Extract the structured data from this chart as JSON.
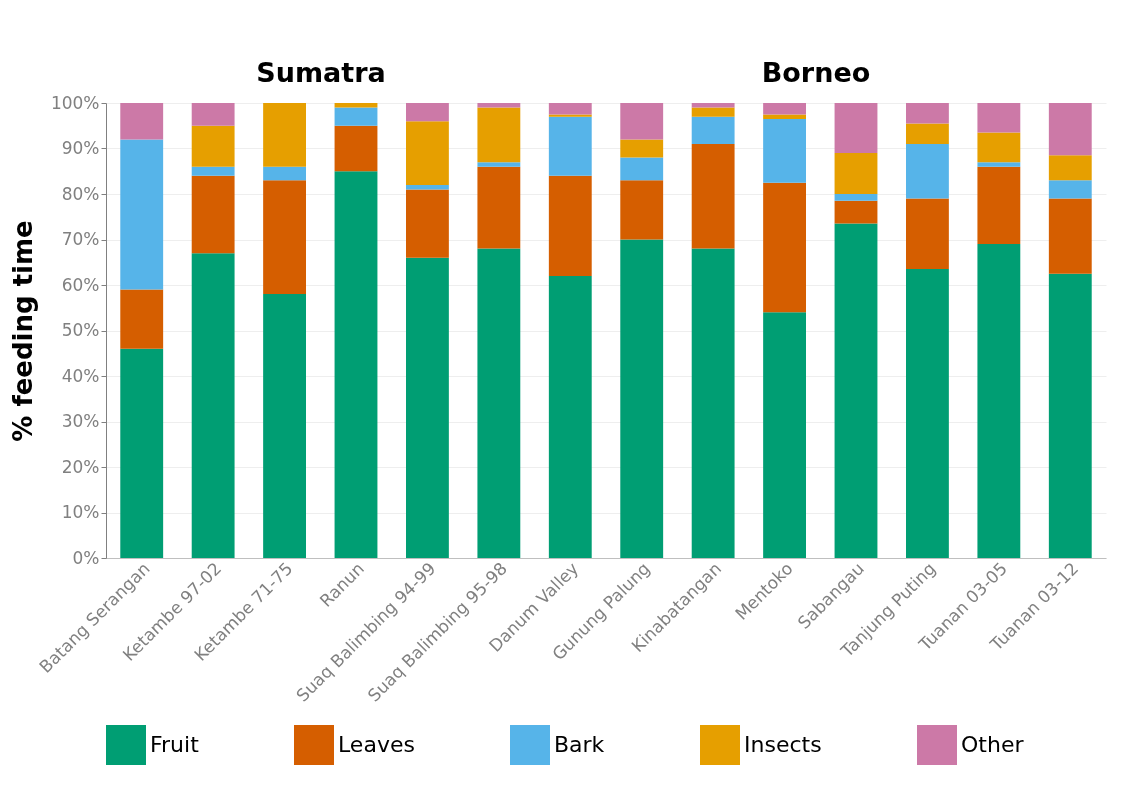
{
  "chart_data": {
    "type": "bar",
    "stacked": true,
    "ylabel": "% feeding time",
    "categories": [
      "Batang Serangan",
      "Ketambe 97-02",
      "Ketambe 71-75",
      "Ranun",
      "Suaq Balimbing 94-99",
      "Suaq Balimbing 95-98",
      "Danum Valley",
      "Gunung Palung",
      "Kinabatangan",
      "Mentoko",
      "Sabangau",
      "Tanjung Puting",
      "Tuanan 03-05",
      "Tuanan 03-12"
    ],
    "series": [
      {
        "name": "Fruit",
        "color": "#009e73",
        "values": [
          46,
          67,
          58,
          85,
          66,
          68,
          62,
          70,
          68,
          54,
          73.5,
          63.5,
          69,
          62.5
        ]
      },
      {
        "name": "Leaves",
        "color": "#d55e00",
        "values": [
          13,
          17,
          25,
          10,
          15,
          18,
          22,
          13,
          23,
          28.5,
          5,
          15.5,
          17,
          16.5
        ]
      },
      {
        "name": "Bark",
        "color": "#56b4e9",
        "values": [
          33,
          2,
          3,
          4,
          1,
          1,
          13,
          5,
          6,
          14,
          1.5,
          12,
          1,
          4
        ]
      },
      {
        "name": "Insects",
        "color": "#e69f00",
        "values": [
          0,
          9,
          14,
          1,
          14,
          12,
          0.5,
          4,
          2,
          1,
          9,
          4.5,
          6.5,
          5.5
        ]
      },
      {
        "name": "Other",
        "color": "#cc79a7",
        "values": [
          8,
          5,
          0,
          0,
          4,
          1,
          2.5,
          8,
          1,
          2.5,
          11,
          4.5,
          6.5,
          11.5
        ]
      }
    ],
    "ylim": [
      0,
      100
    ],
    "yticks": [
      {
        "value": 0,
        "label": "0%"
      },
      {
        "value": 10,
        "label": "10%"
      },
      {
        "value": 20,
        "label": "20%"
      },
      {
        "value": 30,
        "label": "30%"
      },
      {
        "value": 40,
        "label": "40%"
      },
      {
        "value": 50,
        "label": "50%"
      },
      {
        "value": 60,
        "label": "60%"
      },
      {
        "value": 70,
        "label": "70%"
      },
      {
        "value": 80,
        "label": "80%"
      },
      {
        "value": 90,
        "label": "90%"
      },
      {
        "value": 100,
        "label": "100%"
      }
    ],
    "grid": "y",
    "legend": "bottom",
    "annotations": [
      "Sumatra",
      "Borneo"
    ]
  }
}
